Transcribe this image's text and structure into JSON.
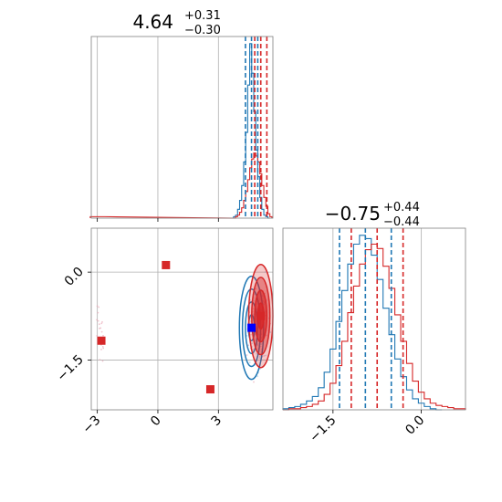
{
  "colors": {
    "blue": "#1f77b4",
    "red": "#d62728",
    "grid": "#b0b0b0",
    "frame": "#808080"
  },
  "chart_data": [
    {
      "type": "histogram",
      "panel": "marginal-param-1",
      "title": {
        "value": "4.64",
        "plus": "+0.31",
        "minus": "−0.30"
      },
      "xlim": [
        -3.3,
        5.7
      ],
      "grid_x": [
        -3,
        0,
        3
      ],
      "series": [
        {
          "color": "#1f77b4",
          "quantiles": [
            4.34,
            4.64,
            4.95
          ],
          "bin_centers": [
            3.7,
            3.8,
            3.9,
            4.0,
            4.1,
            4.2,
            4.3,
            4.4,
            4.5,
            4.6,
            4.7,
            4.8,
            4.9,
            5.0,
            5.1,
            5.2,
            5.3,
            5.4,
            5.5
          ],
          "counts": [
            0,
            1,
            2,
            6,
            12,
            22,
            38,
            58,
            90,
            118,
            98,
            72,
            46,
            28,
            14,
            6,
            2,
            1,
            0
          ]
        },
        {
          "color": "#d62728",
          "quantiles": [
            4.8,
            5.1,
            5.4
          ],
          "bin_centers": [
            -3.3,
            -3.0,
            -2.7,
            3.7,
            3.8,
            3.9,
            4.0,
            4.1,
            4.2,
            4.3,
            4.4,
            4.5,
            4.6,
            4.7,
            4.8,
            4.9,
            5.0,
            5.1,
            5.2,
            5.3,
            5.4,
            5.5,
            5.6
          ],
          "counts": [
            1,
            1,
            1,
            0,
            0,
            1,
            2,
            4,
            7,
            12,
            18,
            26,
            34,
            40,
            44,
            42,
            38,
            30,
            22,
            14,
            8,
            3,
            1
          ]
        }
      ]
    },
    {
      "type": "histogram",
      "panel": "marginal-param-2",
      "title": {
        "value": "−0.75",
        "plus": "+0.44",
        "minus": "−0.44"
      },
      "xlim": [
        -2.35,
        0.75
      ],
      "grid_x": [
        -1.5,
        0.0
      ],
      "series": [
        {
          "color": "#1f77b4",
          "quantiles": [
            -1.39,
            -0.95,
            -0.51
          ],
          "bin_centers": [
            -2.3,
            -2.2,
            -2.1,
            -2.0,
            -1.9,
            -1.8,
            -1.7,
            -1.6,
            -1.5,
            -1.4,
            -1.3,
            -1.2,
            -1.1,
            -1.0,
            -0.9,
            -0.8,
            -0.7,
            -0.6,
            -0.5,
            -0.4,
            -0.3,
            -0.2,
            -0.1,
            0.0,
            0.1,
            0.2,
            0.3
          ],
          "counts": [
            1,
            2,
            3,
            5,
            8,
            12,
            20,
            34,
            55,
            80,
            108,
            132,
            150,
            158,
            155,
            140,
            118,
            92,
            68,
            46,
            30,
            18,
            10,
            6,
            3,
            1,
            0
          ]
        },
        {
          "color": "#d62728",
          "quantiles": [
            -1.19,
            -0.75,
            -0.31
          ],
          "bin_centers": [
            -2.3,
            -2.2,
            -2.1,
            -2.0,
            -1.9,
            -1.8,
            -1.7,
            -1.6,
            -1.5,
            -1.4,
            -1.3,
            -1.2,
            -1.1,
            -1.0,
            -0.9,
            -0.8,
            -0.7,
            -0.6,
            -0.5,
            -0.4,
            -0.3,
            -0.2,
            -0.1,
            0.0,
            0.1,
            0.2,
            0.3,
            0.4,
            0.5,
            0.6,
            0.7
          ],
          "counts": [
            0,
            1,
            1,
            2,
            3,
            5,
            8,
            14,
            24,
            40,
            62,
            88,
            112,
            132,
            145,
            150,
            146,
            130,
            110,
            86,
            62,
            42,
            26,
            16,
            10,
            6,
            4,
            3,
            2,
            1,
            1
          ]
        }
      ]
    },
    {
      "type": "scatter",
      "panel": "joint-param-1-param-2",
      "xlim": [
        -3.3,
        5.7
      ],
      "ylim": [
        -2.35,
        0.75
      ],
      "xticks": [
        "−3",
        "0",
        "3"
      ],
      "yticks": [
        "0.0",
        "−1.5"
      ],
      "tick_values_x": [
        -3,
        0,
        3
      ],
      "tick_values_y": [
        0.0,
        -1.5
      ],
      "red_markers": [
        {
          "x": 0.4,
          "y": 0.12
        },
        {
          "x": -2.8,
          "y": -1.17
        },
        {
          "x": 2.6,
          "y": -2.0
        },
        {
          "x": 5.1,
          "y": -0.75
        }
      ],
      "blue_markers": [
        {
          "x": 4.64,
          "y": -0.95
        }
      ],
      "contours": [
        {
          "color": "#1f77b4",
          "center": [
            4.64,
            -0.95
          ],
          "sigma": [
            0.3,
            0.44
          ],
          "levels": [
            0.5,
            1.0,
            1.5,
            2.0
          ]
        },
        {
          "color": "#d62728",
          "center": [
            5.1,
            -0.75
          ],
          "sigma": [
            0.3,
            0.44
          ],
          "levels": [
            0.5,
            1.0,
            1.5,
            2.0
          ]
        }
      ]
    }
  ]
}
